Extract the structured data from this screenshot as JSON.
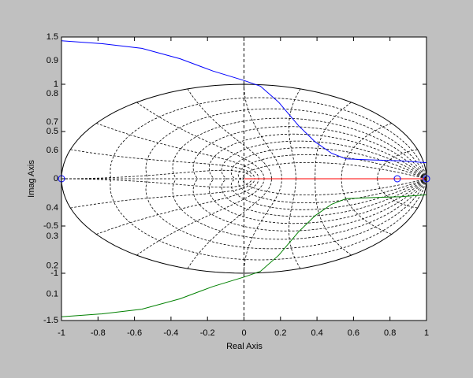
{
  "chart_data": {
    "type": "line",
    "xlabel": "Real Axis",
    "ylabel": "Imag Axis",
    "xlim": [
      -1,
      1
    ],
    "xticks": [
      -1,
      -0.8,
      -0.6,
      -0.4,
      -0.2,
      0,
      0.2,
      0.4,
      0.6,
      0.8,
      1
    ],
    "ylim": [
      -1.5,
      1.5
    ],
    "yticks": [
      -1.5,
      -1,
      -0.5,
      0,
      0.5,
      1,
      1.5
    ],
    "grid": true,
    "series": [
      {
        "color": "#0000ff",
        "x": [
          -1.0,
          -0.78,
          -0.56,
          -0.35,
          -0.17,
          0,
          0.09,
          0.19,
          0.3,
          0.39,
          0.48,
          0.56,
          0.69,
          0.86,
          1.0
        ],
        "values": [
          1.46,
          1.43,
          1.38,
          1.27,
          1.14,
          1.04,
          0.98,
          0.81,
          0.56,
          0.39,
          0.27,
          0.21,
          0.2,
          0.19,
          0.17
        ]
      },
      {
        "color": "#008000",
        "x": [
          -1.0,
          -0.78,
          -0.56,
          -0.35,
          -0.17,
          0,
          0.09,
          0.19,
          0.3,
          0.39,
          0.48,
          0.56,
          0.69,
          0.86,
          1.0
        ],
        "values": [
          -1.46,
          -1.43,
          -1.38,
          -1.27,
          -1.14,
          -1.04,
          -0.98,
          -0.81,
          -0.56,
          -0.39,
          -0.27,
          -0.21,
          -0.2,
          -0.19,
          -0.17
        ]
      },
      {
        "color": "#ff0000",
        "x": [
          0,
          1
        ],
        "values": [
          0,
          0
        ]
      }
    ],
    "zeros": {
      "color": "#0000ff",
      "x": [
        -1,
        0.84,
        1
      ],
      "values": [
        0,
        0,
        0
      ]
    },
    "annotations": [
      {
        "value": 1.25,
        "label": "0.9"
      },
      {
        "value": 0.9,
        "label": "0.8"
      },
      {
        "value": 0.6,
        "label": "0.7"
      },
      {
        "value": 0.3,
        "label": "0.6"
      },
      {
        "value": -0.31,
        "label": "0.4"
      },
      {
        "value": -0.61,
        "label": "0.3"
      },
      {
        "value": -0.92,
        "label": "0.2"
      },
      {
        "value": -1.22,
        "label": "0.1"
      }
    ]
  }
}
